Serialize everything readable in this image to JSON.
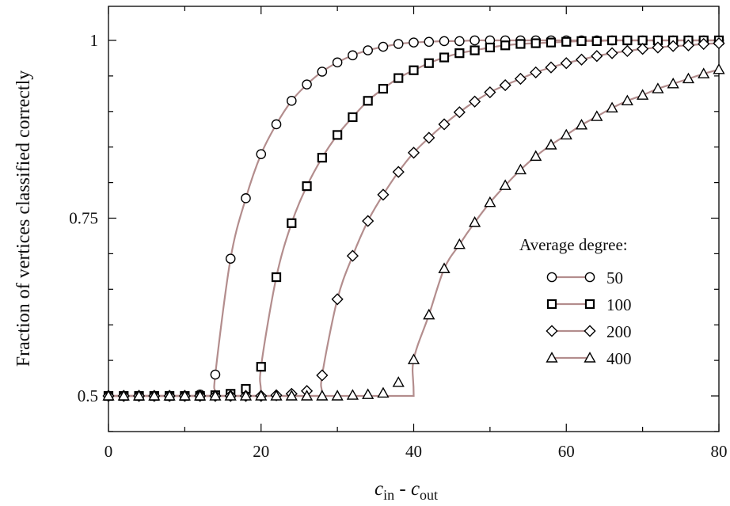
{
  "chart_data": {
    "type": "line",
    "xlabel_main": "c",
    "xlabel_sub1": "in",
    "xlabel_mid": " - c",
    "xlabel_sub2": "out",
    "ylabel": "Fraction of vertices classified correctly",
    "xlim": [
      0,
      80
    ],
    "ylim": [
      0.45,
      1.05
    ],
    "x_ticks": [
      "0",
      "20",
      "40",
      "60",
      "80"
    ],
    "y_ticks": [
      "0.5",
      "0.75",
      "1"
    ],
    "grid": false,
    "legend_title": "Average degree:",
    "legend_position": "right",
    "line_color": "#b38d8d",
    "series": [
      {
        "name": "50",
        "marker": "circle",
        "threshold": 14,
        "x": [
          0,
          2,
          4,
          6,
          8,
          10,
          12,
          14,
          16,
          18,
          20,
          22,
          24,
          26,
          28,
          30,
          32,
          34,
          36,
          38,
          40,
          42,
          44,
          46,
          48,
          50,
          52,
          54,
          56,
          58,
          60,
          62,
          64,
          66,
          68,
          70,
          72,
          74,
          76,
          78,
          80
        ],
        "y": [
          0.5,
          0.5,
          0.5,
          0.5,
          0.5,
          0.5,
          0.502,
          0.53,
          0.693,
          0.778,
          0.84,
          0.882,
          0.915,
          0.938,
          0.956,
          0.969,
          0.979,
          0.986,
          0.991,
          0.995,
          0.997,
          0.998,
          0.999,
          0.999,
          1,
          1,
          1,
          1,
          1,
          1,
          1,
          1,
          1,
          1,
          1,
          1,
          1,
          1,
          1,
          1,
          1
        ]
      },
      {
        "name": "100",
        "marker": "square",
        "threshold": 20,
        "x": [
          0,
          2,
          4,
          6,
          8,
          10,
          12,
          14,
          16,
          18,
          20,
          22,
          24,
          26,
          28,
          30,
          32,
          34,
          36,
          38,
          40,
          42,
          44,
          46,
          48,
          50,
          52,
          54,
          56,
          58,
          60,
          62,
          64,
          66,
          68,
          70,
          72,
          74,
          76,
          78,
          80
        ],
        "y": [
          0.5,
          0.5,
          0.5,
          0.5,
          0.5,
          0.5,
          0.5,
          0.501,
          0.503,
          0.51,
          0.541,
          0.667,
          0.743,
          0.795,
          0.835,
          0.867,
          0.892,
          0.915,
          0.932,
          0.947,
          0.958,
          0.968,
          0.976,
          0.982,
          0.986,
          0.99,
          0.993,
          0.995,
          0.996,
          0.997,
          0.998,
          0.999,
          0.999,
          1,
          1,
          1,
          1,
          1,
          1,
          1,
          1
        ]
      },
      {
        "name": "200",
        "marker": "diamond",
        "threshold": 28,
        "x": [
          0,
          2,
          4,
          6,
          8,
          10,
          12,
          14,
          16,
          18,
          20,
          22,
          24,
          26,
          28,
          30,
          32,
          34,
          36,
          38,
          40,
          42,
          44,
          46,
          48,
          50,
          52,
          54,
          56,
          58,
          60,
          62,
          64,
          66,
          68,
          70,
          72,
          74,
          76,
          78,
          80
        ],
        "y": [
          0.5,
          0.5,
          0.5,
          0.5,
          0.5,
          0.5,
          0.5,
          0.5,
          0.5,
          0.5,
          0.5,
          0.501,
          0.503,
          0.507,
          0.529,
          0.636,
          0.697,
          0.746,
          0.783,
          0.815,
          0.842,
          0.863,
          0.882,
          0.899,
          0.914,
          0.927,
          0.937,
          0.946,
          0.955,
          0.962,
          0.968,
          0.973,
          0.978,
          0.982,
          0.985,
          0.988,
          0.99,
          0.992,
          0.993,
          0.995,
          0.996
        ]
      },
      {
        "name": "400",
        "marker": "triangle",
        "threshold": 40,
        "x": [
          0,
          2,
          4,
          6,
          8,
          10,
          12,
          14,
          16,
          18,
          20,
          22,
          24,
          26,
          28,
          30,
          32,
          34,
          36,
          38,
          40,
          42,
          44,
          46,
          48,
          50,
          52,
          54,
          56,
          58,
          60,
          62,
          64,
          66,
          68,
          70,
          72,
          74,
          76,
          78,
          80
        ],
        "y": [
          0.5,
          0.5,
          0.5,
          0.5,
          0.5,
          0.5,
          0.5,
          0.5,
          0.5,
          0.5,
          0.5,
          0.5,
          0.5,
          0.5,
          0.5,
          0.5,
          0.501,
          0.502,
          0.504,
          0.519,
          0.551,
          0.614,
          0.679,
          0.713,
          0.744,
          0.772,
          0.796,
          0.818,
          0.837,
          0.853,
          0.867,
          0.881,
          0.893,
          0.905,
          0.915,
          0.923,
          0.932,
          0.939,
          0.946,
          0.953,
          0.959
        ]
      }
    ]
  }
}
